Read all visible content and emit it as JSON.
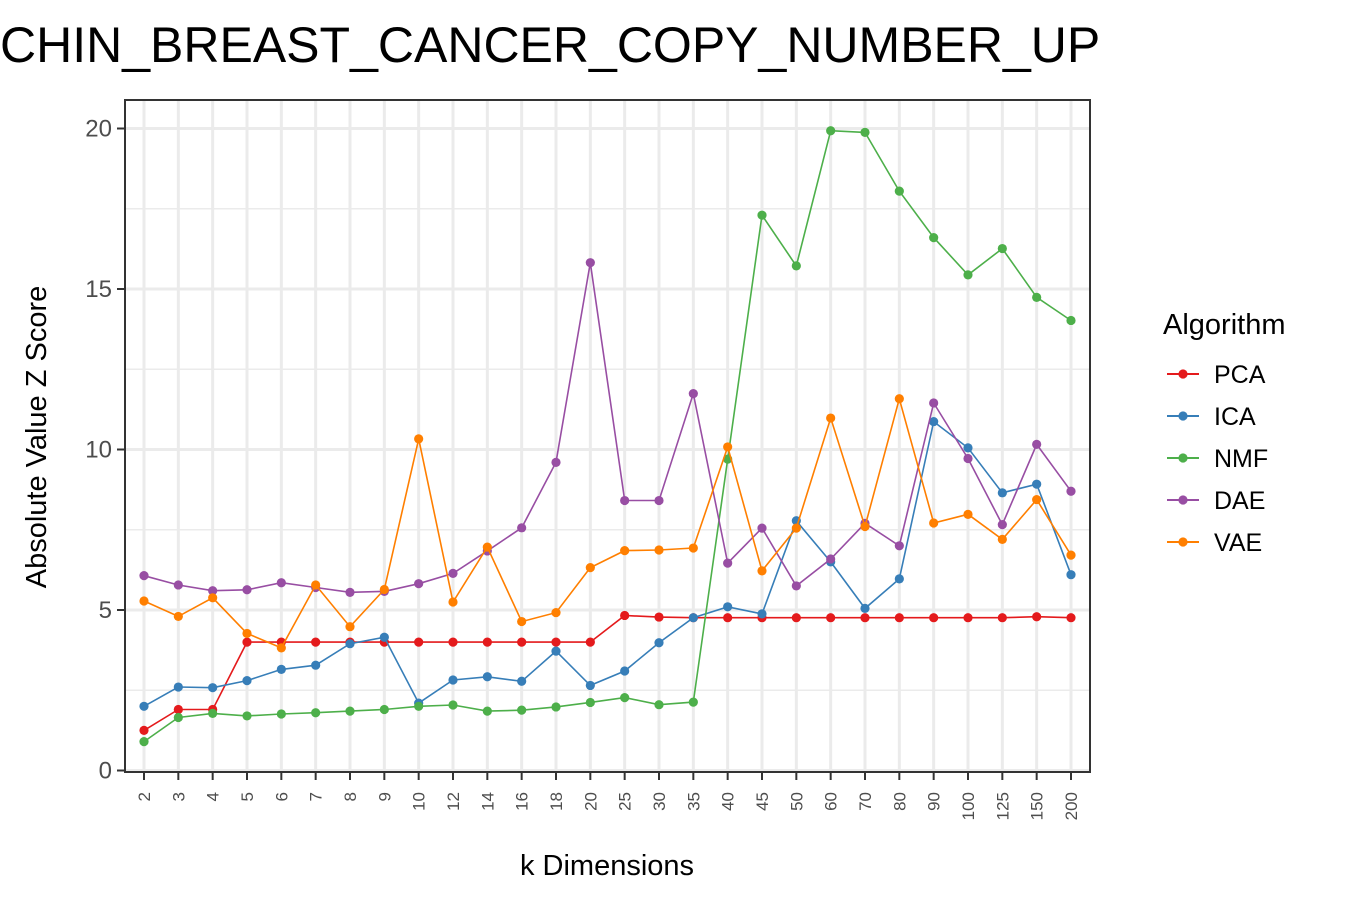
{
  "chart_data": {
    "type": "line",
    "title": "CHIN_BREAST_CANCER_COPY_NUMBER_UP",
    "xlabel": "k Dimensions",
    "ylabel": "Absolute Value Z Score",
    "ylim": [
      0,
      20.6
    ],
    "yticks": [
      0,
      5,
      10,
      15,
      20
    ],
    "grid": true,
    "legend_title": "Algorithm",
    "legend_position": "right",
    "categories": [
      "2",
      "3",
      "4",
      "5",
      "6",
      "7",
      "8",
      "9",
      "10",
      "12",
      "14",
      "16",
      "18",
      "20",
      "25",
      "30",
      "35",
      "40",
      "45",
      "50",
      "60",
      "70",
      "80",
      "90",
      "100",
      "125",
      "150",
      "200"
    ],
    "series": [
      {
        "name": "PCA",
        "color": "#E41A1C",
        "values": [
          1.25,
          1.9,
          1.9,
          4.0,
          4.0,
          4.0,
          4.0,
          4.0,
          4.0,
          4.0,
          4.0,
          4.0,
          4.0,
          4.0,
          4.83,
          4.78,
          4.76,
          4.76,
          4.76,
          4.76,
          4.76,
          4.76,
          4.76,
          4.76,
          4.76,
          4.76,
          4.79,
          4.76
        ]
      },
      {
        "name": "ICA",
        "color": "#377EB8",
        "values": [
          2.0,
          2.6,
          2.58,
          2.8,
          3.15,
          3.28,
          3.95,
          4.15,
          2.1,
          2.82,
          2.92,
          2.78,
          3.72,
          2.65,
          3.1,
          3.98,
          4.76,
          5.1,
          4.88,
          7.78,
          6.5,
          5.05,
          5.97,
          10.87,
          10.05,
          8.65,
          8.92,
          6.1
        ]
      },
      {
        "name": "NMF",
        "color": "#4DAF4A",
        "values": [
          0.9,
          1.65,
          1.78,
          1.7,
          1.76,
          1.8,
          1.85,
          1.9,
          2.0,
          2.04,
          1.85,
          1.88,
          1.98,
          2.12,
          2.27,
          2.05,
          2.13,
          9.7,
          17.3,
          15.72,
          19.93,
          19.88,
          18.05,
          16.6,
          15.44,
          16.26,
          14.74,
          14.02
        ]
      },
      {
        "name": "DAE",
        "color": "#984EA3",
        "values": [
          6.07,
          5.78,
          5.6,
          5.63,
          5.85,
          5.7,
          5.55,
          5.58,
          5.82,
          6.14,
          6.84,
          7.56,
          9.6,
          15.82,
          8.41,
          8.41,
          11.74,
          6.46,
          7.55,
          5.75,
          6.59,
          7.7,
          7.0,
          11.45,
          9.72,
          7.66,
          10.16,
          8.7
        ]
      },
      {
        "name": "VAE",
        "color": "#FF7F00",
        "values": [
          5.28,
          4.8,
          5.38,
          4.27,
          3.82,
          5.78,
          4.48,
          5.64,
          10.33,
          5.25,
          6.96,
          4.64,
          4.92,
          6.32,
          6.85,
          6.87,
          6.93,
          10.08,
          6.22,
          7.55,
          10.98,
          7.6,
          11.58,
          7.71,
          7.98,
          7.2,
          8.44,
          6.71
        ]
      }
    ]
  }
}
